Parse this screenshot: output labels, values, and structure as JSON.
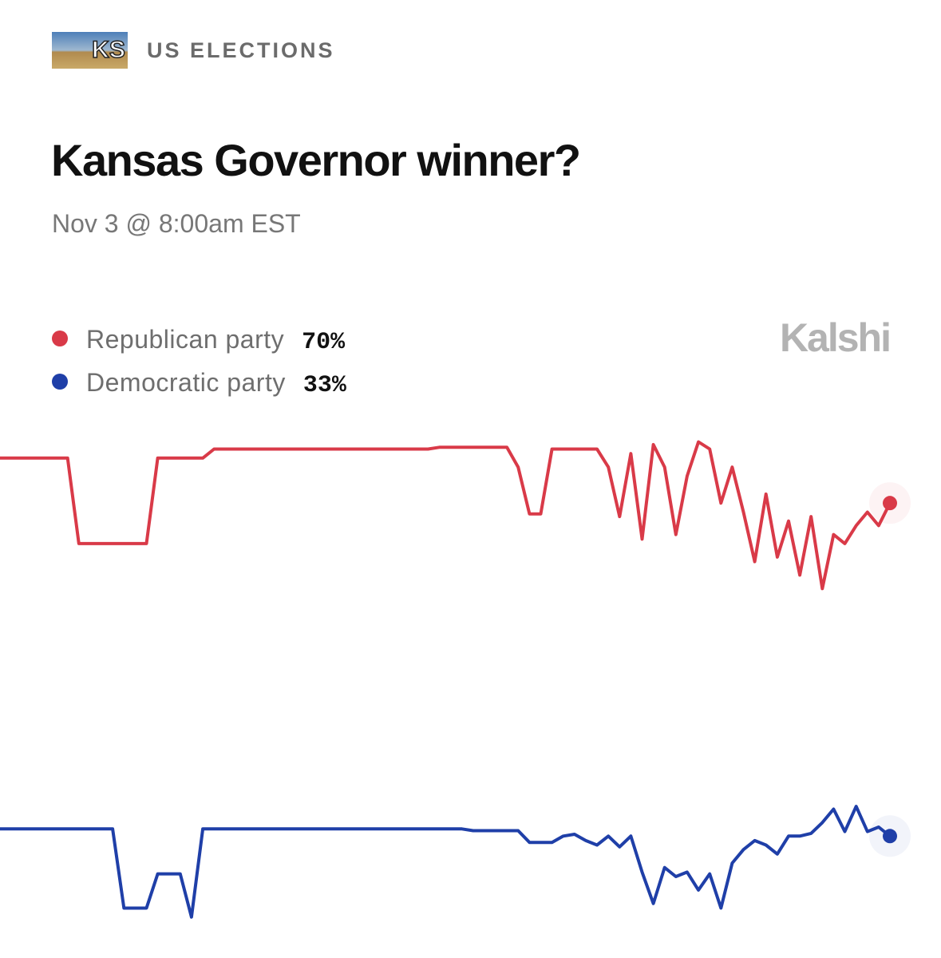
{
  "header": {
    "badge": "KS",
    "category": "US ELECTIONS",
    "title": "Kansas Governor winner?",
    "subtitle": "Nov 3 @ 8:00am EST",
    "brand": "Kalshi"
  },
  "chart_data": {
    "type": "line",
    "ylim": [
      23,
      78
    ],
    "series": [
      {
        "name": "Republican party",
        "legend_value": "70%",
        "color": "#d93a48",
        "values": [
          75,
          75,
          75,
          75,
          75,
          75,
          75,
          65.5,
          65.5,
          65.5,
          65.5,
          65.5,
          65.5,
          65.5,
          75,
          75,
          75,
          75,
          75,
          76,
          76,
          76,
          76,
          76,
          76,
          76,
          76,
          76,
          76,
          76,
          76,
          76,
          76,
          76,
          76,
          76,
          76,
          76,
          76,
          76.2,
          76.2,
          76.2,
          76.2,
          76.2,
          76.2,
          76.2,
          74,
          68.8,
          68.8,
          76,
          76,
          76,
          76,
          76,
          74,
          68.5,
          75.5,
          66,
          76.5,
          74,
          66.5,
          73,
          76.8,
          76,
          70,
          74,
          69,
          63.5,
          71,
          64,
          68,
          62,
          68.5,
          60.5,
          66.5,
          65.5,
          67.5,
          69,
          67.5,
          70
        ]
      },
      {
        "name": "Democratic party",
        "legend_value": "33%",
        "color": "#1f3fa8",
        "values": [
          33.8,
          33.8,
          33.8,
          33.8,
          33.8,
          33.8,
          33.8,
          33.8,
          33.8,
          33.8,
          33.8,
          25,
          25,
          25,
          28.8,
          28.8,
          28.8,
          24,
          33.8,
          33.8,
          33.8,
          33.8,
          33.8,
          33.8,
          33.8,
          33.8,
          33.8,
          33.8,
          33.8,
          33.8,
          33.8,
          33.8,
          33.8,
          33.8,
          33.8,
          33.8,
          33.8,
          33.8,
          33.8,
          33.8,
          33.8,
          33.8,
          33.6,
          33.6,
          33.6,
          33.6,
          33.6,
          32.3,
          32.3,
          32.3,
          33,
          33.2,
          32.5,
          32,
          33,
          31.8,
          33,
          29,
          25.5,
          29.5,
          28.5,
          29,
          27,
          28.8,
          25,
          30,
          31.5,
          32.5,
          32,
          31,
          33,
          33,
          33.3,
          34.5,
          36,
          33.5,
          36.3,
          33.5,
          34,
          33
        ]
      }
    ]
  }
}
